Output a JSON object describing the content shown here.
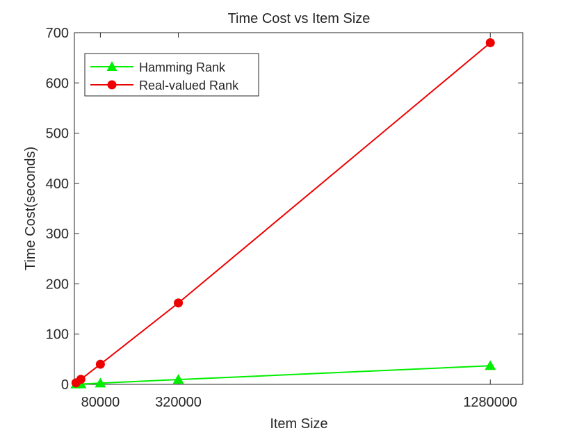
{
  "chart_data": {
    "type": "line",
    "title": "Time Cost vs Item Size",
    "xlabel": "Item Size",
    "ylabel": "Time Cost(seconds)",
    "xlim": [
      0,
      1380000
    ],
    "ylim": [
      0,
      700
    ],
    "xticks": [
      80000,
      320000,
      1280000
    ],
    "xtick_labels": [
      "80000",
      "320000",
      "1280000"
    ],
    "yticks": [
      0,
      100,
      200,
      300,
      400,
      500,
      600,
      700
    ],
    "ytick_labels": [
      "0",
      "100",
      "200",
      "300",
      "400",
      "500",
      "600",
      "700"
    ],
    "grid": false,
    "legend_position": "top-left",
    "series": [
      {
        "name": "Hamming Rank",
        "color": "#00ee00",
        "marker": "triangle",
        "x": [
          5000,
          20000,
          80000,
          320000,
          1280000
        ],
        "y": [
          0.3,
          0.6,
          2.3,
          9.5,
          37
        ]
      },
      {
        "name": "Real-valued Rank",
        "color": "#ee0000",
        "marker": "circle",
        "x": [
          5000,
          20000,
          80000,
          320000,
          1280000
        ],
        "y": [
          3,
          10,
          40,
          162,
          680
        ]
      }
    ]
  }
}
